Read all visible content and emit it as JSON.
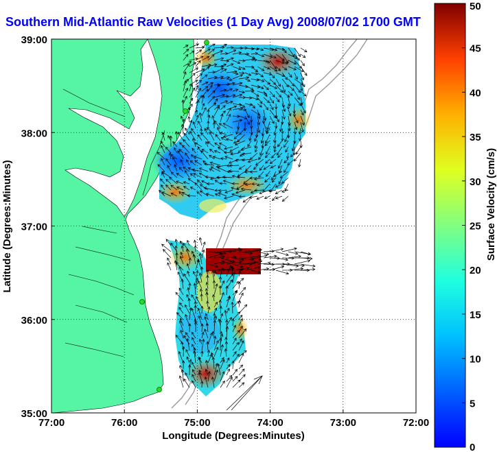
{
  "title": "Southern Mid-Atlantic Raw Velocities (1 Day Avg) 2008/07/02 1700 GMT",
  "xlabel": "Longitude (Degrees:Minutes)",
  "ylabel": "Latitude (Degrees:Minutes)",
  "x_ticks": [
    {
      "label": "77:00",
      "value": -77
    },
    {
      "label": "76:00",
      "value": -76
    },
    {
      "label": "75:00",
      "value": -75
    },
    {
      "label": "74:00",
      "value": -74
    },
    {
      "label": "73:00",
      "value": -73
    },
    {
      "label": "72:00",
      "value": -72
    }
  ],
  "y_ticks": [
    {
      "label": "39:00",
      "value": 39
    },
    {
      "label": "38:00",
      "value": 38
    },
    {
      "label": "37:00",
      "value": 37
    },
    {
      "label": "36:00",
      "value": 36
    },
    {
      "label": "35:00",
      "value": 35
    }
  ],
  "colorbar": {
    "label": "Surface Velocity (cm/s)",
    "min": 0,
    "max": 50,
    "ticks": [
      0,
      5,
      10,
      15,
      20,
      25,
      30,
      35,
      40,
      45,
      50
    ],
    "tick_labels": [
      "0",
      "5",
      "10",
      "15",
      "20",
      "25",
      "30",
      "35",
      "40",
      "45",
      "50"
    ],
    "colormap": "jet"
  },
  "colors": {
    "land": "#55f5a4",
    "water": "#ffffff",
    "title": "#0000ff",
    "vectors": "#000000",
    "bathymetry": "#999999",
    "radar_sites": "#22dd22"
  },
  "map": {
    "lon_range": [
      -77,
      -72
    ],
    "lat_range": [
      35,
      39
    ],
    "grid": true,
    "grid_style": "dotted"
  }
}
